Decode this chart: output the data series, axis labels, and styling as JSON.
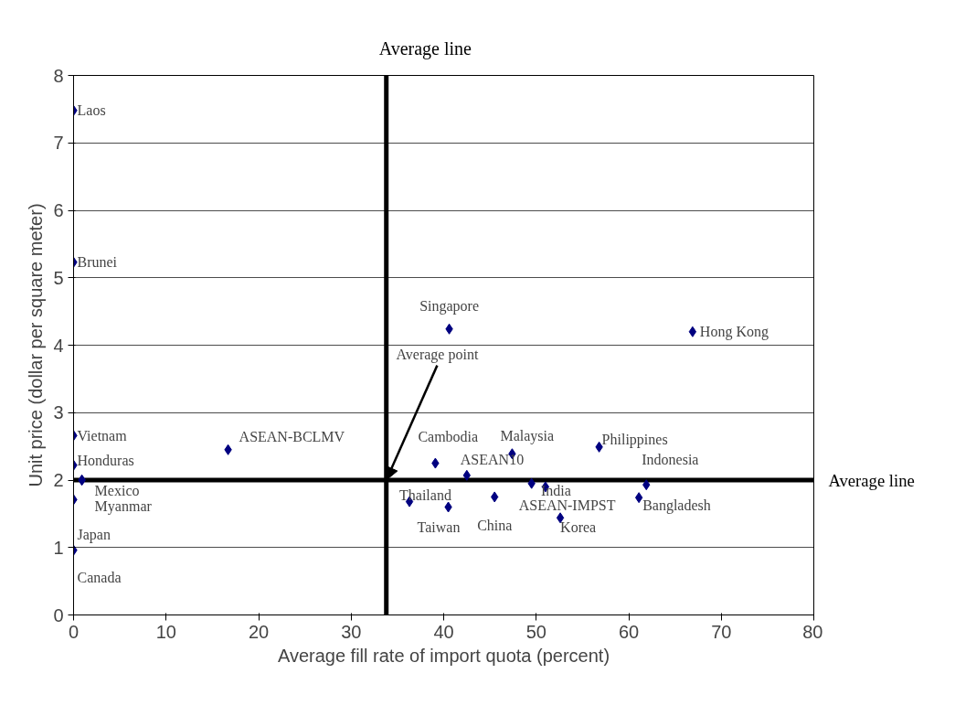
{
  "chart_data": {
    "type": "scatter",
    "xlabel": "Average fill rate of import quota (percent)",
    "ylabel": "Unit price (dollar per square meter)",
    "xlim": [
      0,
      80
    ],
    "xticks": [
      0,
      10,
      20,
      30,
      40,
      50,
      60,
      70,
      80
    ],
    "ylim": [
      0,
      8
    ],
    "yticks": [
      0,
      1,
      2,
      3,
      4,
      5,
      6,
      7,
      8
    ],
    "grid": "y",
    "marker": "diamond",
    "series": [
      {
        "color": "#000080",
        "x": [
          0,
          0,
          0,
          0,
          0.9,
          0.9,
          0,
          0,
          16.7,
          40.6,
          66.9,
          39.1,
          47.4,
          56.8,
          42.5,
          49.5,
          51.0,
          61.9,
          36.3,
          40.5,
          45.5,
          61.1,
          52.6
        ],
        "values": [
          7.48,
          5.23,
          2.66,
          2.22,
          2.0,
          2.0,
          1.71,
          0.96,
          2.45,
          4.24,
          4.2,
          2.25,
          2.39,
          2.49,
          2.07,
          1.95,
          1.9,
          1.93,
          1.68,
          1.6,
          1.75,
          1.74,
          1.44
        ]
      }
    ],
    "ref_lines": [
      {
        "axis": "x",
        "value": 33.8,
        "label": "Average line",
        "color": "#000000"
      },
      {
        "axis": "y",
        "value": 2.0,
        "label": "Average line",
        "color": "#000000"
      }
    ],
    "annotations": [
      {
        "text": "Laos",
        "x": 0,
        "y": 7.48
      },
      {
        "text": "Brunei",
        "x": 0,
        "y": 5.23
      },
      {
        "text": "Vietnam",
        "x": 0,
        "y": 2.66
      },
      {
        "text": "Honduras",
        "x": 0,
        "y": 2.22
      },
      {
        "text": "Mexico",
        "x": 0.9,
        "y": 2.0
      },
      {
        "text": "Myanmar",
        "x": 0.9,
        "y": 2.0
      },
      {
        "text": "Japan",
        "x": 0,
        "y": 1.71
      },
      {
        "text": "Canada",
        "x": 0,
        "y": 0.96
      },
      {
        "text": "ASEAN-BCLMV",
        "x": 16.7,
        "y": 2.45
      },
      {
        "text": "Singapore",
        "x": 40.6,
        "y": 4.24
      },
      {
        "text": "Hong Kong",
        "x": 66.9,
        "y": 4.2
      },
      {
        "text": "Cambodia",
        "x": 39.1,
        "y": 2.25
      },
      {
        "text": "Malaysia",
        "x": 47.4,
        "y": 2.39
      },
      {
        "text": "Philippines",
        "x": 56.8,
        "y": 2.49
      },
      {
        "text": "ASEAN10",
        "x": 42.5,
        "y": 2.07
      },
      {
        "text": "ASEAN-IMPST",
        "x": 49.5,
        "y": 1.95
      },
      {
        "text": "India",
        "x": 51.0,
        "y": 1.9
      },
      {
        "text": "Indonesia",
        "x": 61.9,
        "y": 1.93
      },
      {
        "text": "Thailand",
        "x": 36.3,
        "y": 1.68
      },
      {
        "text": "Taiwan",
        "x": 40.5,
        "y": 1.6
      },
      {
        "text": "China",
        "x": 45.5,
        "y": 1.75
      },
      {
        "text": "Bangladesh",
        "x": 61.1,
        "y": 1.74
      },
      {
        "text": "Korea",
        "x": 52.6,
        "y": 1.44
      },
      {
        "text": "Average point",
        "x": 33.8,
        "y": 2.0
      }
    ]
  }
}
